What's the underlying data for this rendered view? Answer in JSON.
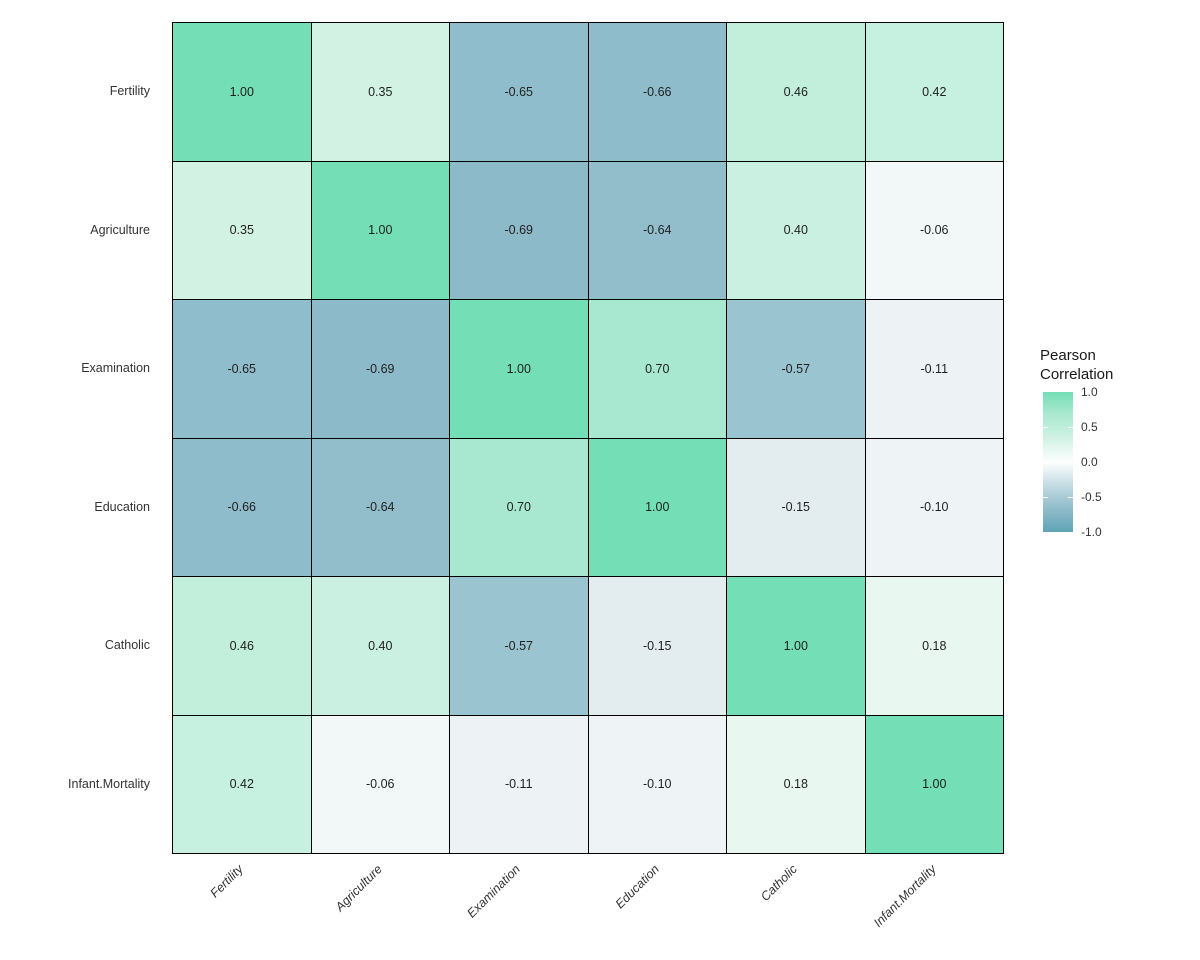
{
  "figure": {
    "background": "#FFFFFF"
  },
  "chart_data": {
    "type": "heatmap",
    "title": "",
    "x_categories": [
      "Fertility",
      "Agriculture",
      "Examination",
      "Education",
      "Catholic",
      "Infant.Mortality"
    ],
    "y_categories": [
      "Fertility",
      "Agriculture",
      "Examination",
      "Education",
      "Catholic",
      "Infant.Mortality"
    ],
    "values": [
      [
        1.0,
        0.35,
        -0.65,
        -0.66,
        0.46,
        0.42
      ],
      [
        0.35,
        1.0,
        -0.69,
        -0.64,
        0.4,
        -0.06
      ],
      [
        -0.65,
        -0.69,
        1.0,
        0.7,
        -0.57,
        -0.11
      ],
      [
        -0.66,
        -0.64,
        0.7,
        1.0,
        -0.15,
        -0.1
      ],
      [
        0.46,
        0.4,
        -0.57,
        -0.15,
        1.0,
        0.18
      ],
      [
        0.42,
        -0.06,
        -0.11,
        -0.1,
        0.18,
        1.0
      ]
    ],
    "cell_colors": [
      [
        "#74DEB6",
        "#D2F2E4",
        "#90BDCB",
        "#8FBCCA",
        "#C2EEDC",
        "#C6F0DF"
      ],
      [
        "#D2F2E4",
        "#74DEB6",
        "#8CBAC9",
        "#92BECC",
        "#C9F0E0",
        "#F2F8F8"
      ],
      [
        "#90BDCB",
        "#8CBAC9",
        "#74DEB6",
        "#A9E8D0",
        "#9BC4D1",
        "#EDF3F4"
      ],
      [
        "#8FBCCA",
        "#92BECC",
        "#A9E8D0",
        "#74DEB6",
        "#E3EDEF",
        "#EEF4F5"
      ],
      [
        "#C2EEDC",
        "#C9F0E0",
        "#9BC4D1",
        "#E3EDEF",
        "#74DEB6",
        "#E8F8F1"
      ],
      [
        "#C6F0DF",
        "#F2F8F8",
        "#EDF3F4",
        "#EEF4F5",
        "#E8F8F1",
        "#74DEB6"
      ]
    ],
    "value_decimals": 2,
    "grid_line_color": "#000000",
    "axis_text_color": "#333333",
    "value_text_color": "#1F1F1F",
    "colorbar": {
      "title_lines": [
        "Pearson",
        "Correlation"
      ],
      "tick_labels": [
        "1.0",
        "0.5",
        "0.0",
        "-0.5",
        "-1.0"
      ],
      "tick_values": [
        1.0,
        0.5,
        0.0,
        -0.5,
        -1.0
      ],
      "domain": [
        -1,
        1
      ],
      "legend_position": "right",
      "gradient_stops": [
        {
          "value": 1.0,
          "color": "#74DEB6"
        },
        {
          "value": 0.7,
          "color": "#A9E8D0"
        },
        {
          "value": 0.4,
          "color": "#C9F0E0"
        },
        {
          "value": 0.0,
          "color": "#FDFEFE"
        },
        {
          "value": -0.4,
          "color": "#B8D5DD"
        },
        {
          "value": -0.7,
          "color": "#8BB9C8"
        },
        {
          "value": -1.0,
          "color": "#5FA4B6"
        }
      ]
    }
  }
}
